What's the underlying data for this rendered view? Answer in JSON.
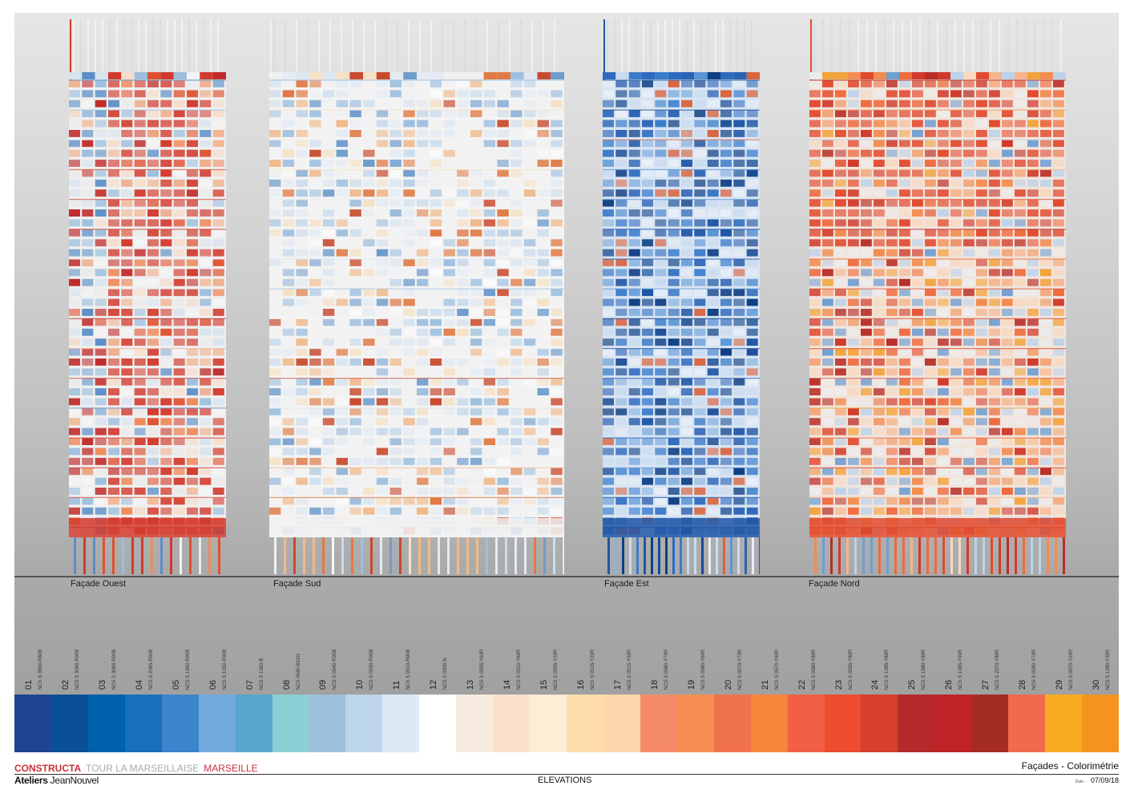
{
  "facades": [
    {
      "label": "Façade Ouest",
      "palette": [
        "#d33a2c",
        "#e0502f",
        "#ef8a5a",
        "#f2b38f",
        "#f6dccb",
        "#eaeaea",
        "#f4f4f4",
        "#d7e3ef",
        "#9dbfdd",
        "#5b8fc6",
        "#c02a2a"
      ]
    },
    {
      "label": "Façade Sud",
      "palette": [
        "#f1f1f1",
        "#e4ebf3",
        "#c9dbec",
        "#9ebfdf",
        "#6e9ccc",
        "#f5e1c6",
        "#f0b98a",
        "#e07a44",
        "#c94a2d",
        "#fafafa",
        "#dde6f0"
      ]
    },
    {
      "label": "Façade Est",
      "palette": [
        "#1f56a6",
        "#2d6bbf",
        "#3a7ccc",
        "#174a93",
        "#5a95d6",
        "#8ab3e0",
        "#0f3f84",
        "#2a62b5",
        "#c8dbef",
        "#e7eef7",
        "#d9643f"
      ]
    },
    {
      "label": "Façade Nord",
      "palette": [
        "#e24a2e",
        "#d13a2a",
        "#ef6a3d",
        "#f28c4f",
        "#b92d27",
        "#f6b48a",
        "#f8d8bf",
        "#ececec",
        "#bcd2ea",
        "#6f9fd1",
        "#f3a33b"
      ]
    }
  ],
  "colors": [
    {
      "num": "01",
      "ncs": "NCS S 3560-R80B",
      "color": "#1d4590"
    },
    {
      "num": "02",
      "ncs": "NCS S 3065-R90B",
      "color": "#0b4f96"
    },
    {
      "num": "03",
      "ncs": "NCS S 3060-R90B",
      "color": "#0062ad"
    },
    {
      "num": "04",
      "ncs": "NCS S 2065-R90B",
      "color": "#1a6fbd"
    },
    {
      "num": "05",
      "ncs": "NCS S 1560-R90B",
      "color": "#3c84cb"
    },
    {
      "num": "06",
      "ncs": "NCS S 1050-R90B",
      "color": "#71aadd"
    },
    {
      "num": "07",
      "ncs": "NCS S 1060-B",
      "color": "#57a6cb"
    },
    {
      "num": "08",
      "ncs": "NCS 0540-B10G",
      "color": "#8ad0d6"
    },
    {
      "num": "09",
      "ncs": "NCS S 0540-R90B",
      "color": "#9fc0dd"
    },
    {
      "num": "10",
      "ncs": "NCS S 0530-R90B",
      "color": "#bdd6ec"
    },
    {
      "num": "11",
      "ncs": "NCS S 0510-R90B",
      "color": "#dde9f4"
    },
    {
      "num": "12",
      "ncs": "NCS S 0300-N",
      "color": "#ffffff"
    },
    {
      "num": "13",
      "ncs": "NCS S 0505-Y60R",
      "color": "#f8ece1"
    },
    {
      "num": "14",
      "ncs": "NCS S 0510-Y60R",
      "color": "#fce2cc"
    },
    {
      "num": "15",
      "ncs": "NCS S 0505-Y20R",
      "color": "#fdedd6"
    },
    {
      "num": "16",
      "ncs": "NCS S 0515-Y20R",
      "color": "#fedcac"
    },
    {
      "num": "17",
      "ncs": "NCS S 0515-Y50R",
      "color": "#fcd7ac"
    },
    {
      "num": "18",
      "ncs": "NCS S 0560-Y70R",
      "color": "#f58b69"
    },
    {
      "num": "19",
      "ncs": "NCS S 0560-Y60R",
      "color": "#f78f52"
    },
    {
      "num": "20",
      "ncs": "NCS S 0570-Y70R",
      "color": "#f1724f"
    },
    {
      "num": "21",
      "ncs": "NCS S 0570-Y60R",
      "color": "#f68638"
    },
    {
      "num": "22",
      "ncs": "NCS S 0580-Y80R",
      "color": "#f15f45"
    },
    {
      "num": "23",
      "ncs": "NCS S 0585-Y80R",
      "color": "#ed4c2e"
    },
    {
      "num": "24",
      "ncs": "NCS S 1085-Y80R",
      "color": "#d6402d"
    },
    {
      "num": "25",
      "ncs": "NCS S 1580-Y80R",
      "color": "#b5292a"
    },
    {
      "num": "26",
      "ncs": "NCS S 1085-Y90R",
      "color": "#bf2227"
    },
    {
      "num": "27",
      "ncs": "NCS S 2570-Y80R",
      "color": "#a42c24"
    },
    {
      "num": "28",
      "ncs": "NCS S 0580-Y70R",
      "color": "#f06a4d"
    },
    {
      "num": "29",
      "ncs": "NCS S 0570-Y20R",
      "color": "#f9ab20"
    },
    {
      "num": "30",
      "ncs": "NCS S 1080-Y30R",
      "color": "#f59320"
    }
  ],
  "footer": {
    "client": "CONSTRUCTA",
    "project": "TOUR LA MARSEILLAISE",
    "city": "MARSEILLE",
    "architect_bold": "Ateliers",
    "architect_name": "JeanNouvel",
    "drawing": "ELEVATIONS",
    "sheet_title": "Façades - Colorimétrie",
    "date_label": "Date :",
    "date": "07/09/18"
  }
}
